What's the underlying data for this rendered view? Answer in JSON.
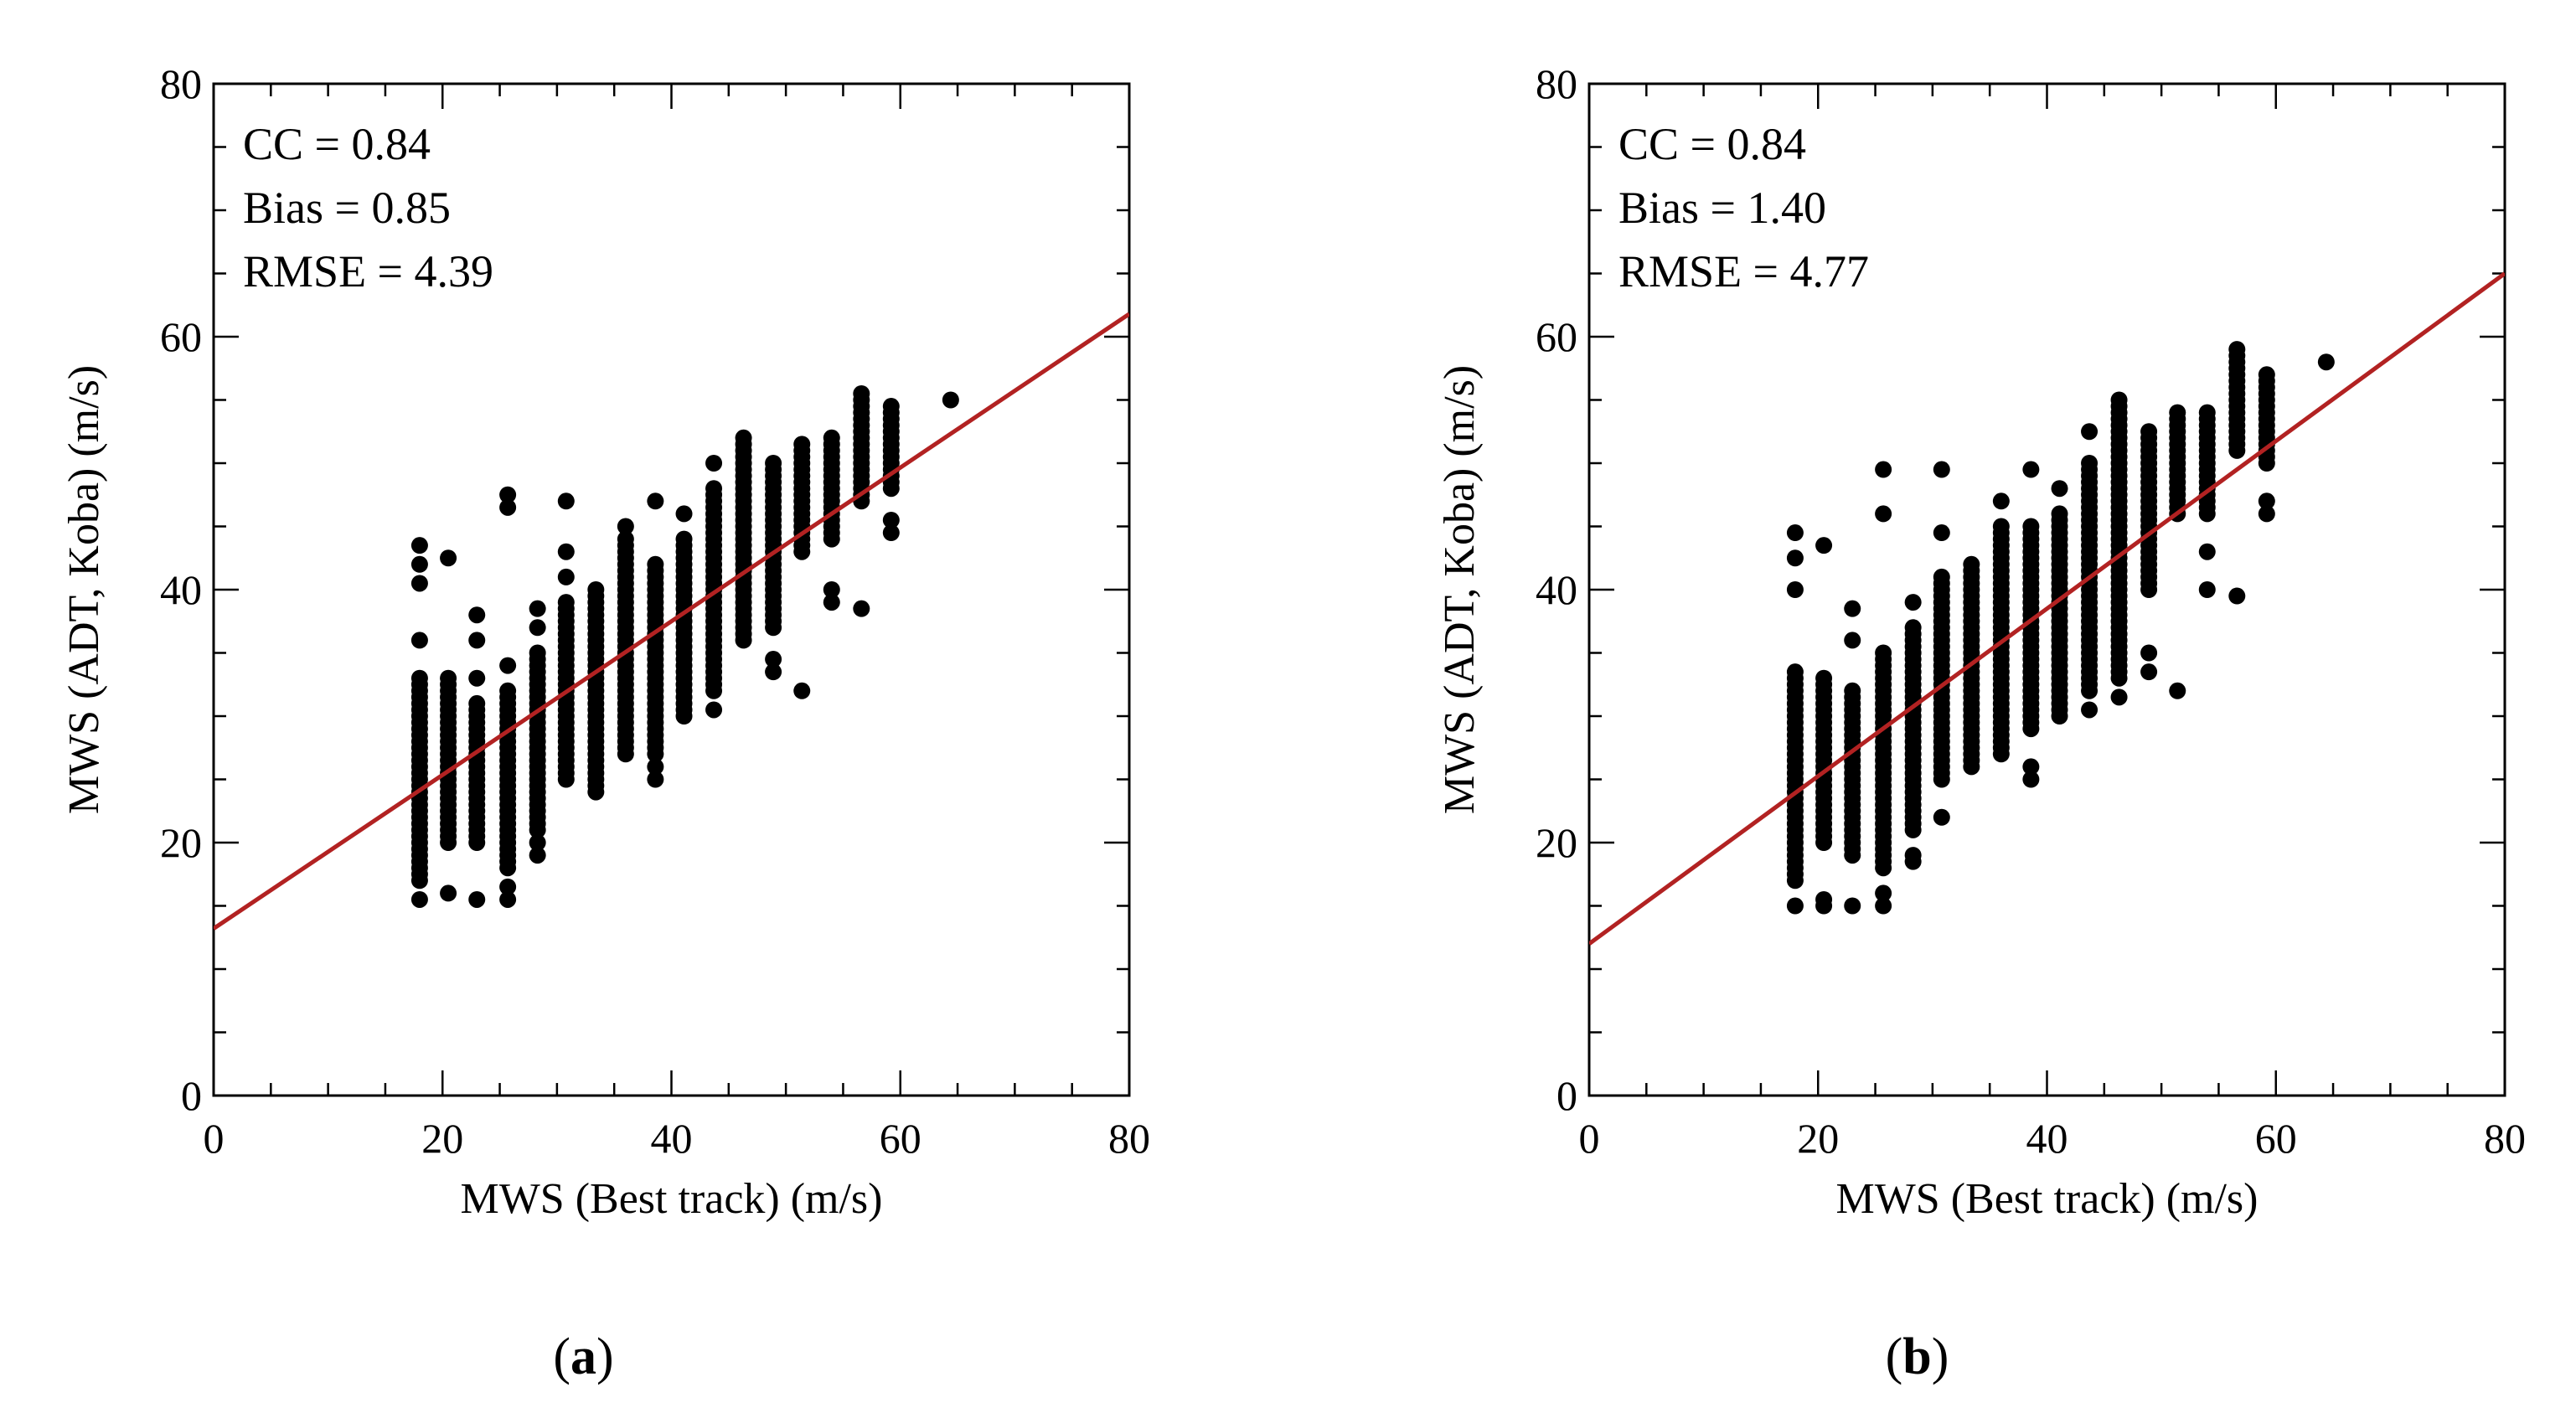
{
  "chart_data": [
    {
      "type": "scatter",
      "panel_label": "a",
      "xlabel": "MWS (Best track) (m/s)",
      "ylabel": "MWS (ADT, Koba) (m/s)",
      "xlim": [
        0,
        80
      ],
      "ylim": [
        0,
        80
      ],
      "xticks": [
        "0",
        "20",
        "40",
        "60",
        "80"
      ],
      "yticks": [
        "0",
        "20",
        "40",
        "60",
        "80"
      ],
      "grid": false,
      "stats": [
        "CC = 0.84",
        "Bias = 0.85",
        "RMSE = 4.39"
      ],
      "marker_color": "#000000",
      "fit_line": {
        "color": "#b22222",
        "x": [
          0,
          80
        ],
        "y": [
          13.2,
          61.8
        ]
      },
      "columns": [
        {
          "x": 18,
          "y_min": 17,
          "y_max": 33,
          "extra": [
            15.5,
            36,
            40.5,
            42,
            43.5
          ]
        },
        {
          "x": 20.5,
          "y_min": 20,
          "y_max": 33,
          "extra": [
            16,
            42.5
          ]
        },
        {
          "x": 23,
          "y_min": 20,
          "y_max": 31,
          "extra": [
            15.5,
            33,
            36,
            38
          ]
        },
        {
          "x": 25.7,
          "y_min": 18,
          "y_max": 32,
          "extra": [
            15.5,
            16.5,
            34,
            46.5,
            47.5
          ]
        },
        {
          "x": 28.3,
          "y_min": 21,
          "y_max": 35,
          "extra": [
            19,
            20,
            37,
            38.5
          ]
        },
        {
          "x": 30.8,
          "y_min": 25,
          "y_max": 39,
          "extra": [
            41,
            43,
            47
          ]
        },
        {
          "x": 33.4,
          "y_min": 24,
          "y_max": 40
        },
        {
          "x": 36,
          "y_min": 27,
          "y_max": 44,
          "extra": [
            45
          ]
        },
        {
          "x": 38.6,
          "y_min": 27,
          "y_max": 42,
          "extra": [
            25,
            26,
            47
          ]
        },
        {
          "x": 41.1,
          "y_min": 30,
          "y_max": 44,
          "extra": [
            46
          ]
        },
        {
          "x": 43.7,
          "y_min": 32,
          "y_max": 48,
          "extra": [
            30.5,
            50
          ]
        },
        {
          "x": 46.3,
          "y_min": 36,
          "y_max": 52
        },
        {
          "x": 48.9,
          "y_min": 37,
          "y_max": 50,
          "extra": [
            33.5,
            34.5
          ]
        },
        {
          "x": 51.4,
          "y_min": 43,
          "y_max": 51.5,
          "extra": [
            32
          ]
        },
        {
          "x": 54,
          "y_min": 44,
          "y_max": 52,
          "extra": [
            39,
            40
          ]
        },
        {
          "x": 56.6,
          "y_min": 47,
          "y_max": 55.5,
          "extra": [
            38.5
          ]
        },
        {
          "x": 59.2,
          "y_min": 48,
          "y_max": 54.5,
          "extra": [
            44.5,
            45.5
          ]
        },
        {
          "x": 64.4,
          "y_min": 55,
          "y_max": 55
        }
      ]
    },
    {
      "type": "scatter",
      "panel_label": "b",
      "xlabel": "MWS (Best track) (m/s)",
      "ylabel": "MWS (ADT, Koba) (m/s)",
      "xlim": [
        0,
        80
      ],
      "ylim": [
        0,
        80
      ],
      "xticks": [
        "0",
        "20",
        "40",
        "60",
        "80"
      ],
      "yticks": [
        "0",
        "20",
        "40",
        "60",
        "80"
      ],
      "grid": false,
      "stats": [
        "CC = 0.84",
        "Bias = 1.40",
        "RMSE = 4.77"
      ],
      "marker_color": "#000000",
      "fit_line": {
        "color": "#b22222",
        "x": [
          0,
          80
        ],
        "y": [
          12,
          65
        ]
      },
      "columns": [
        {
          "x": 18,
          "y_min": 17,
          "y_max": 33.5,
          "extra": [
            15,
            40,
            42.5,
            44.5
          ]
        },
        {
          "x": 20.5,
          "y_min": 20,
          "y_max": 33,
          "extra": [
            15,
            15.5,
            43.5
          ]
        },
        {
          "x": 23,
          "y_min": 19,
          "y_max": 32,
          "extra": [
            15,
            36,
            38.5
          ]
        },
        {
          "x": 25.7,
          "y_min": 18,
          "y_max": 35,
          "extra": [
            15,
            16,
            46,
            49.5
          ]
        },
        {
          "x": 28.3,
          "y_min": 21,
          "y_max": 37,
          "extra": [
            18.5,
            19,
            39
          ]
        },
        {
          "x": 30.8,
          "y_min": 25,
          "y_max": 41,
          "extra": [
            22,
            44.5,
            49.5
          ]
        },
        {
          "x": 33.4,
          "y_min": 26,
          "y_max": 42
        },
        {
          "x": 36,
          "y_min": 27,
          "y_max": 45,
          "extra": [
            47
          ]
        },
        {
          "x": 38.6,
          "y_min": 29,
          "y_max": 45,
          "extra": [
            25,
            26,
            49.5
          ]
        },
        {
          "x": 41.1,
          "y_min": 30,
          "y_max": 46,
          "extra": [
            48
          ]
        },
        {
          "x": 43.7,
          "y_min": 32,
          "y_max": 50,
          "extra": [
            30.5,
            52.5
          ]
        },
        {
          "x": 46.3,
          "y_min": 33,
          "y_max": 55,
          "extra": [
            31.5
          ]
        },
        {
          "x": 48.9,
          "y_min": 40,
          "y_max": 52.5,
          "extra": [
            33.5,
            35
          ]
        },
        {
          "x": 51.4,
          "y_min": 46,
          "y_max": 54,
          "extra": [
            32
          ]
        },
        {
          "x": 54,
          "y_min": 46,
          "y_max": 54,
          "extra": [
            40,
            43
          ]
        },
        {
          "x": 56.6,
          "y_min": 51,
          "y_max": 59,
          "extra": [
            39.5
          ]
        },
        {
          "x": 59.2,
          "y_min": 50,
          "y_max": 57,
          "extra": [
            46,
            47
          ]
        },
        {
          "x": 64.4,
          "y_min": 58,
          "y_max": 58
        }
      ]
    }
  ]
}
